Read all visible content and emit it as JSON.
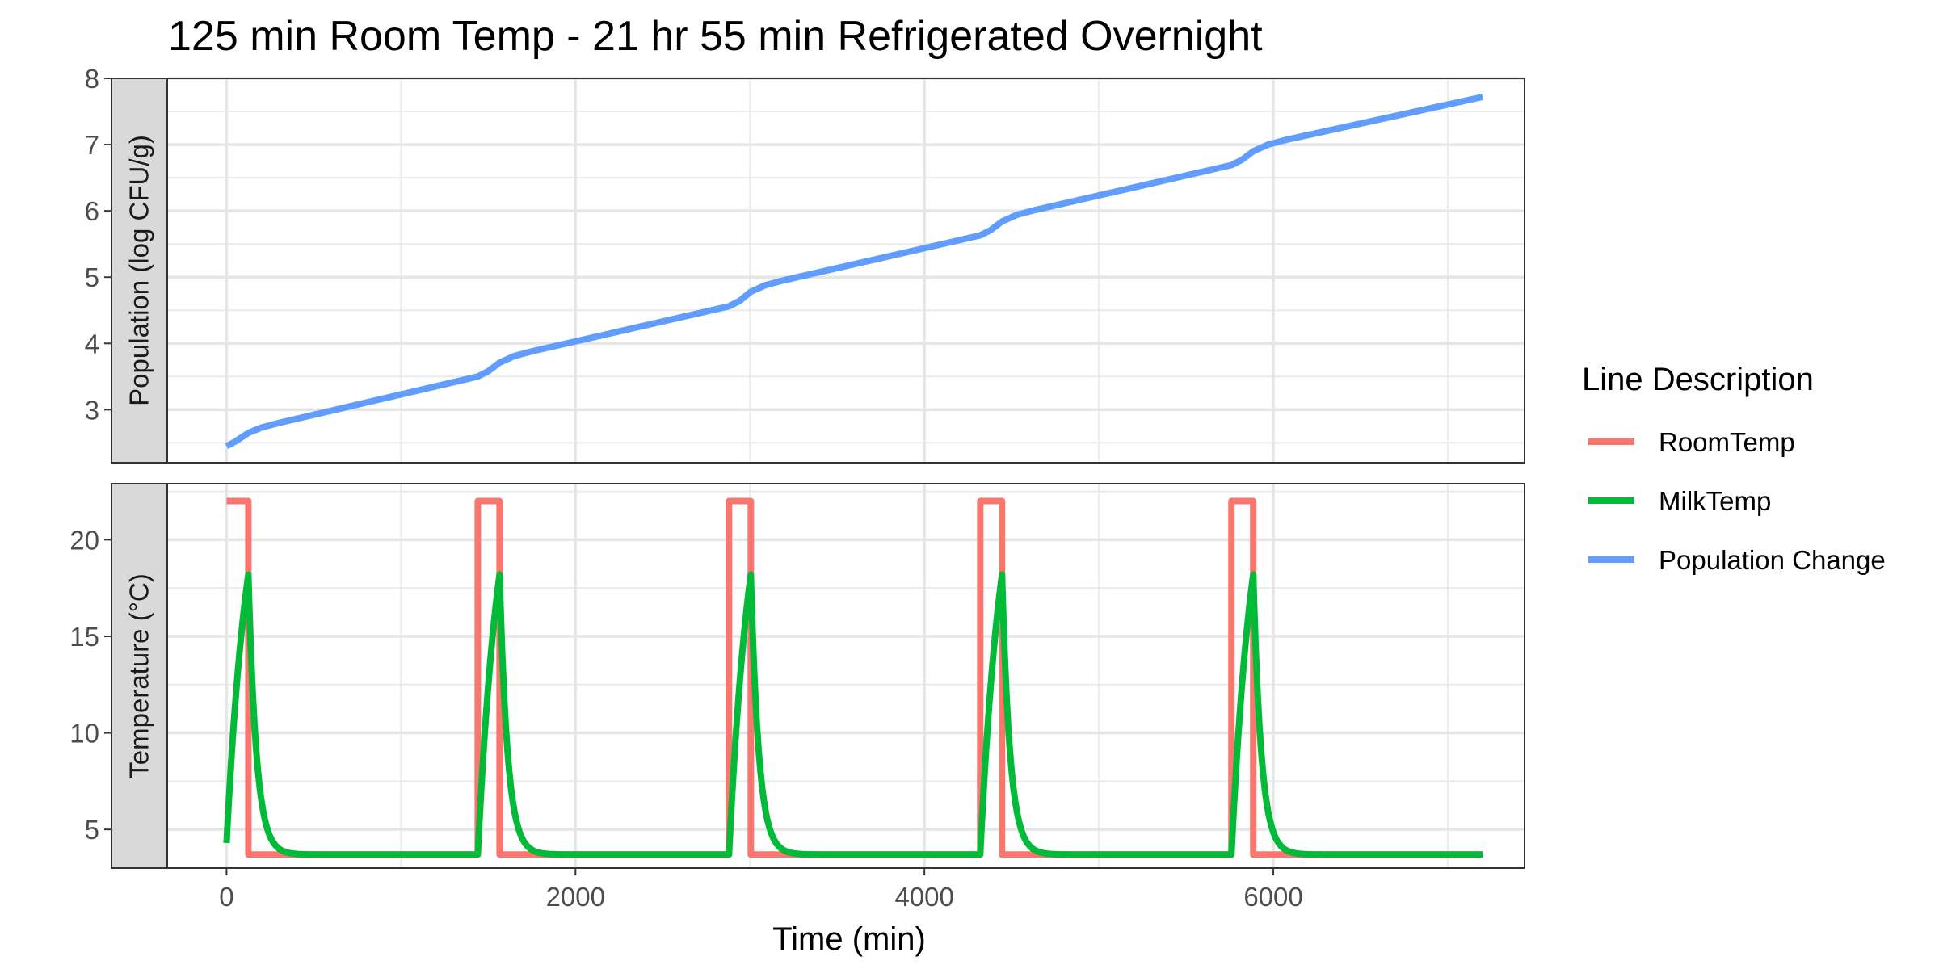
{
  "chart_data": {
    "type": "line",
    "title": "125 min Room Temp - 21 hr 55 min Refrigerated Overnight",
    "xlabel": "Time (min)",
    "xlim": [
      -340,
      7440
    ],
    "x_ticks": [
      0,
      2000,
      4000,
      6000
    ],
    "legend": {
      "title": "Line Description",
      "placement": "right",
      "entries": [
        {
          "label": "RoomTemp",
          "color": "#F8766D"
        },
        {
          "label": "MilkTemp",
          "color": "#00BA38"
        },
        {
          "label": "Population Change",
          "color": "#619CFF"
        }
      ]
    },
    "grid": true,
    "cycles": {
      "period_min": 1440,
      "room_temp_duration_min": 125,
      "count": 5
    },
    "panels": [
      {
        "strip_label": "Population (log CFU/g)",
        "ylim": [
          2.2,
          8.0
        ],
        "y_ticks": [
          3,
          4,
          5,
          6,
          7,
          8
        ],
        "series": [
          {
            "name": "Population Change",
            "color": "#619CFF",
            "points": [
              [
                0,
                2.45
              ],
              [
                50,
                2.52
              ],
              [
                125,
                2.65
              ],
              [
                200,
                2.73
              ],
              [
                300,
                2.8
              ],
              [
                1440,
                3.5
              ],
              [
                1500,
                3.58
              ],
              [
                1565,
                3.71
              ],
              [
                1650,
                3.81
              ],
              [
                1750,
                3.88
              ],
              [
                2880,
                4.56
              ],
              [
                2940,
                4.64
              ],
              [
                3005,
                4.78
              ],
              [
                3090,
                4.88
              ],
              [
                3190,
                4.95
              ],
              [
                4320,
                5.63
              ],
              [
                4380,
                5.71
              ],
              [
                4445,
                5.84
              ],
              [
                4530,
                5.94
              ],
              [
                4630,
                6.01
              ],
              [
                5760,
                6.69
              ],
              [
                5820,
                6.77
              ],
              [
                5885,
                6.9
              ],
              [
                5970,
                7.0
              ],
              [
                6070,
                7.07
              ],
              [
                7200,
                7.72
              ]
            ]
          }
        ]
      },
      {
        "strip_label": "Temperature (°C)",
        "ylim": [
          3.0,
          22.9
        ],
        "y_ticks": [
          5,
          10,
          15,
          20
        ],
        "series": [
          {
            "name": "RoomTemp",
            "color": "#F8766D",
            "high": 22,
            "low": 3.7
          },
          {
            "name": "MilkTemp",
            "color": "#00BA38",
            "start": 4.3,
            "peak": 18.2,
            "low": 3.7
          }
        ]
      }
    ]
  }
}
